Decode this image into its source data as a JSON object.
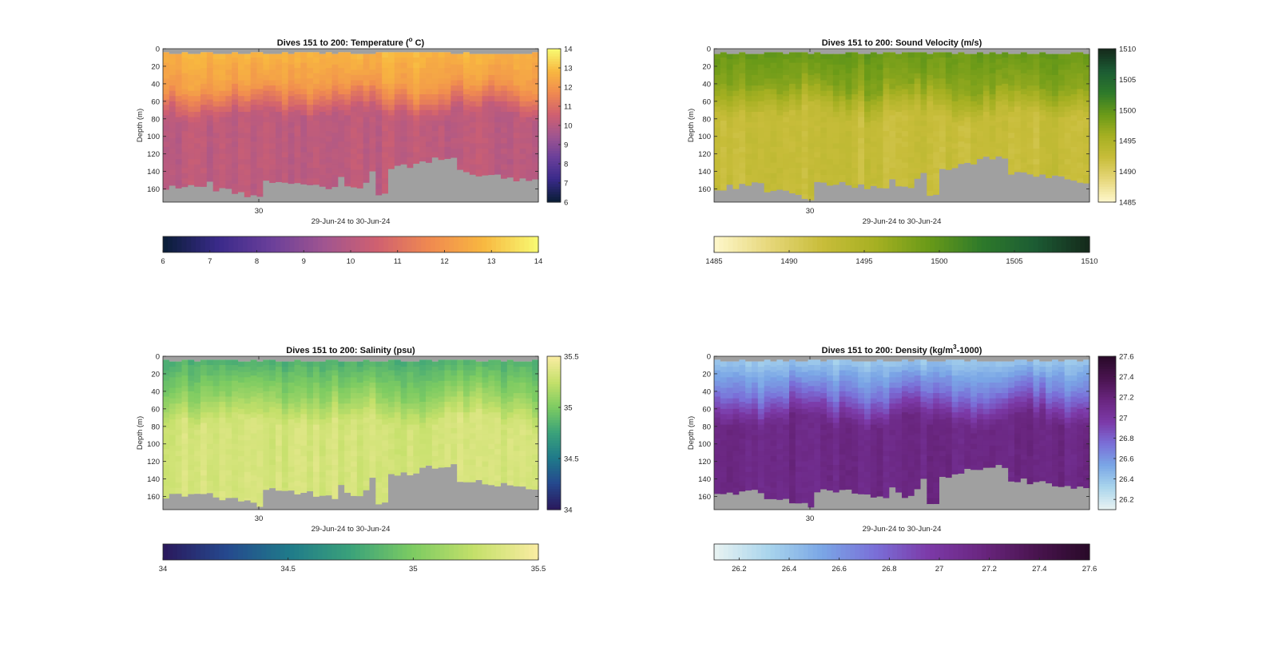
{
  "chart_data": [
    {
      "type": "heatmap",
      "title": "Dives 151 to 200: Temperature (",
      "title_sup": "o",
      "title_post": " C)",
      "ylabel": "Depth (m)",
      "xlabel": "29-Jun-24 to 30-Jun-24",
      "x_ticks": [
        "30"
      ],
      "y_ticks": [
        "0",
        "20",
        "40",
        "60",
        "80",
        "100",
        "120",
        "140",
        "160"
      ],
      "ylim": [
        0,
        175
      ],
      "colormap": [
        "#0b1e3a",
        "#3a2a8a",
        "#6a3f9a",
        "#a05590",
        "#d06070",
        "#f08a50",
        "#f8b740",
        "#f8f870"
      ],
      "cbar_range": [
        6,
        14
      ],
      "cbar_ticks": [
        "6",
        "7",
        "8",
        "9",
        "10",
        "11",
        "12",
        "13",
        "14"
      ],
      "hcbar_ticks": [
        "6",
        "7",
        "8",
        "9",
        "10",
        "11",
        "12",
        "13",
        "14"
      ],
      "surface_value": 12.8,
      "thermo_value": 12.2,
      "deep_value": 10.1,
      "mixed_depth": 38,
      "nodata_color": "#a0a0a0"
    },
    {
      "type": "heatmap",
      "title": "Dives 151 to 200: Sound Velocity (m/s)",
      "title_sup": "",
      "title_post": "",
      "ylabel": "Depth (m)",
      "xlabel": "29-Jun-24 to 30-Jun-24",
      "x_ticks": [
        "30"
      ],
      "y_ticks": [
        "0",
        "20",
        "40",
        "60",
        "80",
        "100",
        "120",
        "140",
        "160"
      ],
      "ylim": [
        0,
        175
      ],
      "colormap": [
        "#fdf6c8",
        "#e6d77a",
        "#c8bd3a",
        "#a6b022",
        "#6a9a18",
        "#2e7a2a",
        "#1c5c34",
        "#152b1c"
      ],
      "cbar_range": [
        1485,
        1510
      ],
      "cbar_ticks": [
        "1485",
        "1490",
        "1495",
        "1500",
        "1505",
        "1510"
      ],
      "hcbar_ticks": [
        "1485",
        "1490",
        "1495",
        "1500",
        "1505",
        "1510"
      ],
      "surface_value": 1499.5,
      "thermo_value": 1497.5,
      "deep_value": 1492.3,
      "mixed_depth": 38,
      "nodata_color": "#a0a0a0"
    },
    {
      "type": "heatmap",
      "title": "Dives 151 to 200: Salinity (psu)",
      "title_sup": "",
      "title_post": "",
      "ylabel": "Depth (m)",
      "xlabel": "29-Jun-24 to 30-Jun-24",
      "x_ticks": [
        "30"
      ],
      "y_ticks": [
        "0",
        "20",
        "40",
        "60",
        "80",
        "100",
        "120",
        "140",
        "160"
      ],
      "ylim": [
        0,
        175
      ],
      "colormap": [
        "#2a1a5e",
        "#25498e",
        "#1f7a8a",
        "#3aa27a",
        "#7ccb62",
        "#c4e06a",
        "#f8eca0"
      ],
      "cbar_range": [
        34,
        35.5
      ],
      "cbar_ticks": [
        "34",
        "34.5",
        "35",
        "35.5"
      ],
      "hcbar_ticks": [
        "34",
        "34.5",
        "35",
        "35.5"
      ],
      "surface_value": 34.82,
      "thermo_value": 35.05,
      "deep_value": 35.33,
      "mixed_depth": 38,
      "nodata_color": "#a0a0a0"
    },
    {
      "type": "heatmap",
      "title": "Dives 151 to 200: Density (kg/m",
      "title_sup": "3",
      "title_post": "-1000)",
      "ylabel": "Depth (m)",
      "xlabel": "29-Jun-24 to 30-Jun-24",
      "x_ticks": [
        "30"
      ],
      "y_ticks": [
        "0",
        "20",
        "40",
        "60",
        "80",
        "100",
        "120",
        "140",
        "160"
      ],
      "ylim": [
        0,
        175
      ],
      "colormap": [
        "#e6f2f2",
        "#a8d4ec",
        "#7aa6e6",
        "#7a6fd8",
        "#7c3aa8",
        "#6a2680",
        "#4a1450",
        "#2a0a2a"
      ],
      "cbar_range": [
        26.1,
        27.6
      ],
      "cbar_ticks": [
        "26.2",
        "26.4",
        "26.6",
        "26.8",
        "27",
        "27.2",
        "27.4",
        "27.6"
      ],
      "hcbar_ticks": [
        "26.2",
        "26.4",
        "26.6",
        "26.8",
        "27",
        "27.2",
        "27.4",
        "27.6"
      ],
      "surface_value": 26.35,
      "thermo_value": 26.7,
      "deep_value": 27.15,
      "mixed_depth": 38,
      "nodata_color": "#a0a0a0"
    }
  ]
}
